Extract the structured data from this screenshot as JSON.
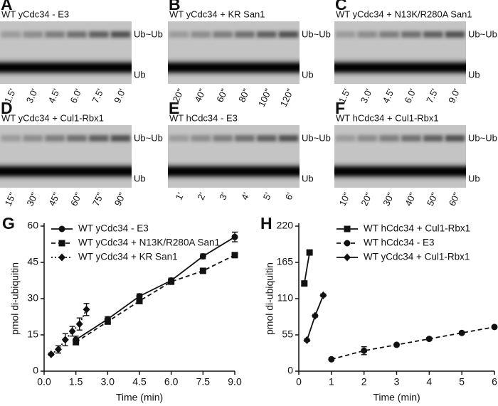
{
  "panels": [
    {
      "letter": "A",
      "title": "WT yCdc34 - E3",
      "band_labels": [
        "Ub~Ub",
        "Ub"
      ],
      "lanes": [
        "1.5'",
        "3.0'",
        "4.5'",
        "6.0'",
        "7.5'",
        "9.0'"
      ]
    },
    {
      "letter": "B",
      "title": "WT yCdc34 + KR San1",
      "band_labels": [
        "Ub~Ub",
        "Ub"
      ],
      "lanes": [
        "20\"",
        "40\"",
        "60\"",
        "80\"",
        "100\"",
        "120\""
      ]
    },
    {
      "letter": "C",
      "title": "WT yCdc34 + N13K/R280A San1",
      "band_labels": [
        "Ub~Ub",
        "Ub"
      ],
      "lanes": [
        "1.5'",
        "3.0'",
        "4.5'",
        "6.0'",
        "7.5'",
        "9.0'"
      ]
    },
    {
      "letter": "D",
      "title": "WT yCdc34 + Cul1-Rbx1",
      "band_labels": [
        "Ub~Ub",
        "Ub"
      ],
      "lanes": [
        "15\"",
        "30\"",
        "45\"",
        "60\"",
        "75\"",
        "90\""
      ]
    },
    {
      "letter": "E",
      "title": "WT hCdc34 - E3",
      "band_labels": [
        "Ub~Ub",
        "Ub"
      ],
      "lanes": [
        "1'",
        "2'",
        "3'",
        "4'",
        "5'",
        "6'"
      ]
    },
    {
      "letter": "F",
      "title": "WT hCdc34 + Cul1-Rbx1",
      "band_labels": [
        "Ub~Ub",
        "Ub"
      ],
      "lanes": [
        "10\"",
        "20\"",
        "30\"",
        "40\"",
        "50\"",
        "60\""
      ]
    }
  ],
  "chart_data": [
    {
      "type": "line",
      "label": "G",
      "x_label": "Time (min)",
      "y_label": "pmol di-ubiquitin",
      "legend": "top-left",
      "xlim": [
        0,
        9
      ],
      "xticks": [
        {
          "value": 0,
          "label": "0.0"
        },
        1.5,
        {
          "value": 3,
          "label": "3.0"
        },
        4.5,
        {
          "value": 6,
          "label": "6.0"
        },
        7.5,
        {
          "value": 9,
          "label": "9.0"
        }
      ],
      "ylim": [
        0,
        60
      ],
      "yticks": [
        0,
        15,
        30,
        45,
        60
      ],
      "series": [
        {
          "name": "WT yCdc34 - E3",
          "color": "#111111",
          "marker": "circle",
          "dash": "solid",
          "x": [
            1.5,
            3,
            4.5,
            6,
            7.5,
            9
          ],
          "values": [
            13,
            21.5,
            31,
            37.5,
            47.5,
            55.5
          ],
          "errors": [
            1.5,
            1,
            1,
            1,
            1,
            2
          ]
        },
        {
          "name": "WT yCdc34 + N13K/R280A San1",
          "color": "#111111",
          "marker": "square",
          "dash": "dashed",
          "x": [
            1.5,
            3,
            4.5,
            6,
            7.5,
            9
          ],
          "values": [
            12,
            20.5,
            29,
            37,
            41.5,
            48
          ],
          "errors": [
            1,
            1,
            1,
            1,
            1,
            1
          ]
        },
        {
          "name": "WT yCdc34 + KR San1",
          "color": "#111111",
          "marker": "diamond",
          "dash": "dotted",
          "x": [
            0.33,
            0.67,
            1,
            1.33,
            1.67,
            2
          ],
          "values": [
            7,
            9,
            13,
            16.5,
            19.5,
            25.5
          ],
          "errors": [
            0.5,
            1.5,
            2.5,
            2,
            2.5,
            2.5
          ]
        }
      ]
    },
    {
      "type": "line",
      "label": "H",
      "x_label": "Time (min)",
      "y_label": "pmol di-ubiquitin",
      "legend": "top-right",
      "xlim": [
        0,
        6
      ],
      "xticks": [
        0,
        1,
        2,
        3,
        4,
        5,
        6
      ],
      "ylim": [
        0,
        220
      ],
      "yticks": [
        0,
        55,
        110,
        165,
        220
      ],
      "series": [
        {
          "name": "WT hCdc34 + Cul1-Rbx1",
          "color": "#111111",
          "marker": "square",
          "dash": "solid",
          "x": [
            0.17,
            0.33
          ],
          "values": [
            133,
            180
          ],
          "errors": [
            3,
            3
          ]
        },
        {
          "name": "WT hCdc34 - E3",
          "color": "#111111",
          "marker": "circle",
          "dash": "dashed",
          "x": [
            1,
            2,
            3,
            4,
            5,
            6
          ],
          "values": [
            18,
            31,
            40,
            49,
            58,
            67
          ],
          "errors": [
            2,
            6,
            2,
            2,
            2,
            2
          ]
        },
        {
          "name": "WT yCdc34 + Cul1-Rbx1",
          "color": "#111111",
          "marker": "diamond",
          "dash": "solid",
          "x": [
            0.25,
            0.5,
            0.75
          ],
          "values": [
            47,
            84,
            115
          ],
          "errors": [
            2,
            2,
            2
          ]
        }
      ]
    }
  ]
}
